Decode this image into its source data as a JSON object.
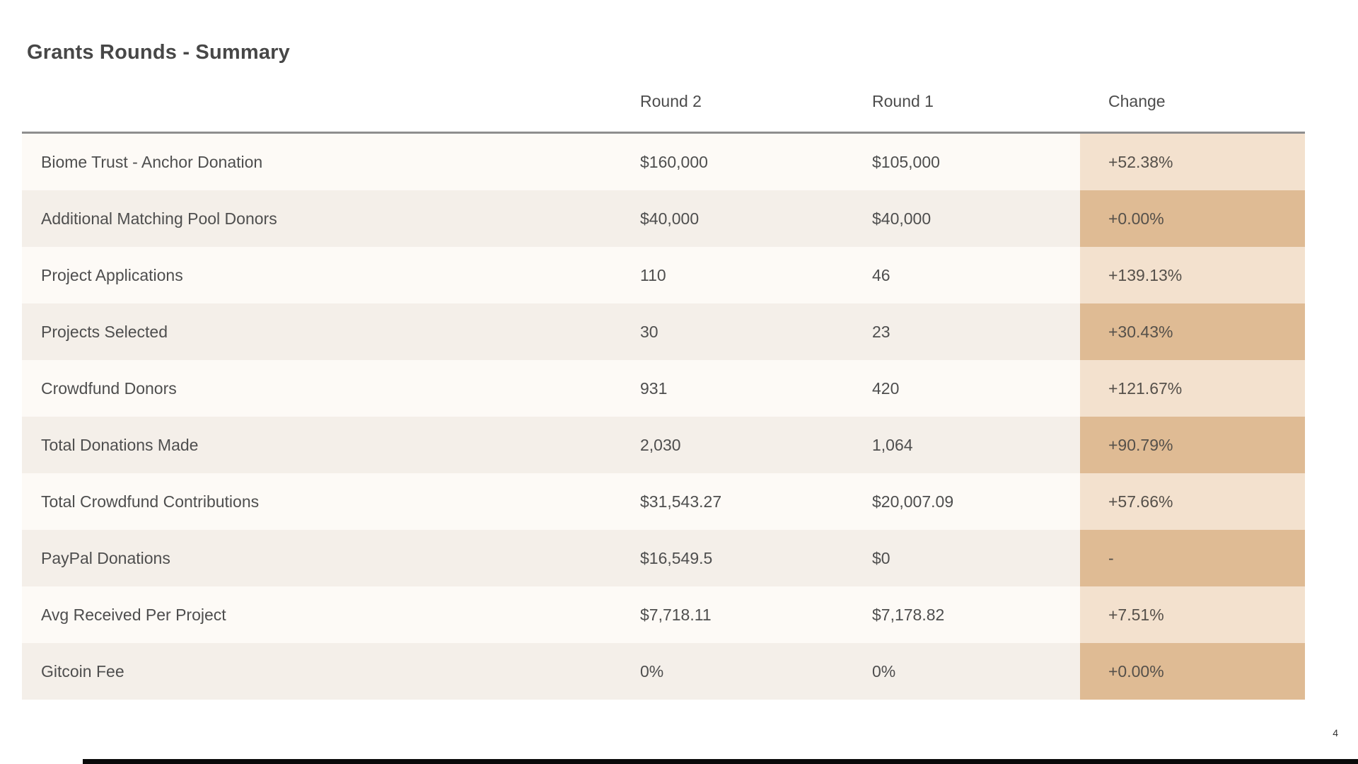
{
  "page": {
    "title": "Grants Rounds - Summary",
    "page_number": "4"
  },
  "table": {
    "header": {
      "metric": "",
      "round2": "Round 2",
      "round1": "Round 1",
      "change": "Change"
    },
    "rows": [
      {
        "label": "Biome Trust - Anchor Donation",
        "round2": "$160,000",
        "round1": "$105,000",
        "change": "+52.38%"
      },
      {
        "label": "Additional Matching Pool Donors",
        "round2": "$40,000",
        "round1": "$40,000",
        "change": "+0.00%"
      },
      {
        "label": "Project Applications",
        "round2": "110",
        "round1": "46",
        "change": "+139.13%"
      },
      {
        "label": "Projects Selected",
        "round2": "30",
        "round1": "23",
        "change": "+30.43%"
      },
      {
        "label": "Crowdfund Donors",
        "round2": "931",
        "round1": "420",
        "change": "+121.67%"
      },
      {
        "label": "Total Donations Made",
        "round2": "2,030",
        "round1": "1,064",
        "change": "+90.79%"
      },
      {
        "label": "Total Crowdfund Contributions",
        "round2": "$31,543.27",
        "round1": "$20,007.09",
        "change": "+57.66%"
      },
      {
        "label": "PayPal Donations",
        "round2": "$16,549.5",
        "round1": "$0",
        "change": "-"
      },
      {
        "label": "Avg Received Per Project",
        "round2": "$7,718.11",
        "round1": "$7,178.82",
        "change": "+7.51%"
      },
      {
        "label": "Gitcoin Fee",
        "round2": "0%",
        "round1": "0%",
        "change": "+0.00%"
      }
    ]
  },
  "colors": {
    "row_light_bg": "#fdfaf6",
    "row_dark_bg": "#f4efe9",
    "change_light_bg": "#f3e1ce",
    "change_dark_bg": "#dfbb94",
    "header_rule": "#8e8e8e",
    "text": "#4e4e4e"
  }
}
